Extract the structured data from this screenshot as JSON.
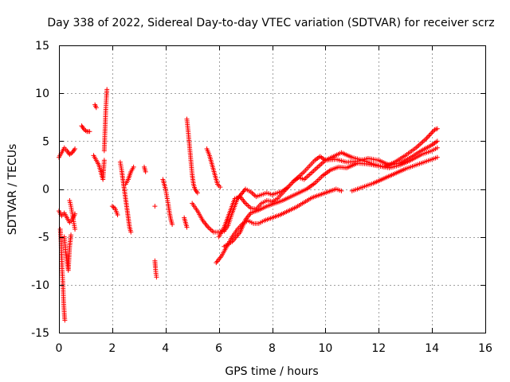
{
  "chart_data": {
    "type": "scatter",
    "title": "Day 338 of 2022, Sidereal Day-to-day VTEC variation (SDTVAR) for receiver scrz",
    "xlabel": "GPS time / hours",
    "ylabel": "SDTVAR / TECUs",
    "xlim": [
      0,
      16
    ],
    "ylim": [
      -15,
      15
    ],
    "xticks": [
      0,
      2,
      4,
      6,
      8,
      10,
      12,
      14,
      16
    ],
    "yticks": [
      -15,
      -10,
      -5,
      0,
      5,
      10,
      15
    ],
    "xtick_labels": [
      "0",
      "2",
      "4",
      "6",
      "8",
      "10",
      "12",
      "14",
      "16"
    ],
    "ytick_labels": [
      "-15",
      "-10",
      "-5",
      "0",
      "5",
      "10",
      "15"
    ],
    "grid": true,
    "marker": "+",
    "color": "#ff0000",
    "tracks": [
      {
        "name": "track-1",
        "points": [
          [
            0.0,
            3.3
          ],
          [
            0.1,
            3.8
          ],
          [
            0.2,
            4.3
          ],
          [
            0.3,
            4.0
          ],
          [
            0.4,
            3.6
          ],
          [
            0.5,
            3.8
          ],
          [
            0.6,
            4.2
          ]
        ]
      },
      {
        "name": "track-2",
        "points": [
          [
            0.0,
            -2.3
          ],
          [
            0.1,
            -2.8
          ],
          [
            0.2,
            -2.5
          ],
          [
            0.3,
            -3.0
          ],
          [
            0.4,
            -3.5
          ],
          [
            0.5,
            -3.2
          ],
          [
            0.6,
            -2.6
          ]
        ]
      },
      {
        "name": "track-3",
        "points": [
          [
            0.05,
            -4.2
          ],
          [
            0.08,
            -5.5
          ],
          [
            0.1,
            -7.0
          ],
          [
            0.12,
            -8.5
          ],
          [
            0.15,
            -10.0
          ],
          [
            0.17,
            -11.5
          ],
          [
            0.2,
            -13.0
          ],
          [
            0.22,
            -13.7
          ]
        ]
      },
      {
        "name": "track-4",
        "points": [
          [
            0.2,
            -5.0
          ],
          [
            0.25,
            -6.5
          ],
          [
            0.3,
            -7.5
          ],
          [
            0.35,
            -8.5
          ],
          [
            0.4,
            -6.0
          ],
          [
            0.45,
            -4.8
          ]
        ]
      },
      {
        "name": "track-5",
        "points": [
          [
            0.4,
            -1.2
          ],
          [
            0.45,
            -1.8
          ],
          [
            0.5,
            -2.6
          ],
          [
            0.55,
            -3.4
          ],
          [
            0.6,
            -4.2
          ]
        ]
      },
      {
        "name": "track-6",
        "points": [
          [
            0.85,
            6.6
          ],
          [
            0.95,
            6.2
          ],
          [
            1.05,
            6.0
          ],
          [
            1.15,
            6.0
          ]
        ]
      },
      {
        "name": "track-7",
        "points": [
          [
            1.35,
            8.8
          ],
          [
            1.4,
            8.5
          ]
        ]
      },
      {
        "name": "track-8",
        "points": [
          [
            1.3,
            3.5
          ],
          [
            1.4,
            3.0
          ],
          [
            1.5,
            2.5
          ],
          [
            1.6,
            1.5
          ],
          [
            1.65,
            1.0
          ],
          [
            1.7,
            3.0
          ]
        ]
      },
      {
        "name": "track-9",
        "points": [
          [
            1.7,
            4.0
          ],
          [
            1.72,
            5.5
          ],
          [
            1.74,
            7.0
          ],
          [
            1.76,
            8.5
          ],
          [
            1.78,
            9.5
          ],
          [
            1.8,
            10.4
          ]
        ]
      },
      {
        "name": "track-10",
        "points": [
          [
            2.0,
            -1.8
          ],
          [
            2.1,
            -2.0
          ],
          [
            2.2,
            -2.7
          ]
        ]
      },
      {
        "name": "track-11",
        "points": [
          [
            2.3,
            2.8
          ],
          [
            2.35,
            2.0
          ],
          [
            2.4,
            1.0
          ],
          [
            2.45,
            0.0
          ],
          [
            2.5,
            -1.0
          ],
          [
            2.55,
            -2.0
          ],
          [
            2.6,
            -3.0
          ],
          [
            2.65,
            -4.0
          ],
          [
            2.7,
            -4.5
          ]
        ]
      },
      {
        "name": "track-12",
        "points": [
          [
            2.5,
            0.5
          ],
          [
            2.6,
            1.0
          ],
          [
            2.7,
            1.8
          ],
          [
            2.8,
            2.3
          ]
        ]
      },
      {
        "name": "track-13",
        "points": [
          [
            3.2,
            2.3
          ],
          [
            3.25,
            1.8
          ]
        ]
      },
      {
        "name": "track-14",
        "points": [
          [
            3.6,
            -7.5
          ],
          [
            3.62,
            -8.2
          ],
          [
            3.64,
            -8.8
          ],
          [
            3.66,
            -9.2
          ]
        ]
      },
      {
        "name": "track-15",
        "points": [
          [
            3.6,
            -1.8
          ]
        ]
      },
      {
        "name": "track-16",
        "points": [
          [
            3.9,
            1.0
          ],
          [
            3.95,
            0.5
          ],
          [
            4.0,
            0.0
          ],
          [
            4.05,
            -0.8
          ],
          [
            4.1,
            -1.6
          ],
          [
            4.15,
            -2.5
          ],
          [
            4.2,
            -3.2
          ],
          [
            4.25,
            -3.7
          ]
        ]
      },
      {
        "name": "track-17",
        "points": [
          [
            4.7,
            -3.0
          ],
          [
            4.75,
            -3.5
          ],
          [
            4.8,
            -4.0
          ]
        ]
      },
      {
        "name": "track-18",
        "points": [
          [
            4.8,
            7.3
          ],
          [
            4.85,
            6.0
          ],
          [
            4.9,
            4.5
          ],
          [
            4.95,
            3.0
          ],
          [
            5.0,
            1.5
          ],
          [
            5.05,
            0.5
          ],
          [
            5.1,
            0.0
          ],
          [
            5.2,
            -0.4
          ]
        ]
      },
      {
        "name": "track-19",
        "points": [
          [
            5.55,
            4.2
          ],
          [
            5.65,
            3.5
          ],
          [
            5.75,
            2.5
          ],
          [
            5.85,
            1.5
          ],
          [
            5.95,
            0.5
          ],
          [
            6.05,
            0.2
          ]
        ]
      },
      {
        "name": "track-20",
        "points": [
          [
            5.0,
            -1.5
          ],
          [
            5.2,
            -2.3
          ],
          [
            5.4,
            -3.3
          ],
          [
            5.6,
            -4.0
          ],
          [
            5.8,
            -4.5
          ],
          [
            6.0,
            -4.5
          ],
          [
            6.2,
            -4.4
          ],
          [
            6.35,
            -3.8
          ],
          [
            6.5,
            -2.5
          ],
          [
            6.7,
            -1.0
          ],
          [
            6.85,
            -0.5
          ],
          [
            7.0,
            0.0
          ],
          [
            7.2,
            -0.3
          ],
          [
            7.4,
            -0.8
          ],
          [
            7.6,
            -0.6
          ],
          [
            7.8,
            -0.4
          ],
          [
            8.0,
            -0.6
          ],
          [
            8.2,
            -0.4
          ],
          [
            8.4,
            -0.2
          ],
          [
            8.6,
            0.2
          ],
          [
            8.8,
            0.8
          ],
          [
            9.0,
            1.3
          ],
          [
            9.2,
            1.8
          ],
          [
            9.4,
            2.4
          ],
          [
            9.6,
            3.0
          ],
          [
            9.8,
            3.4
          ],
          [
            10.0,
            3.0
          ],
          [
            10.3,
            3.4
          ],
          [
            10.6,
            3.8
          ],
          [
            11.0,
            3.3
          ],
          [
            11.4,
            3.0
          ],
          [
            11.8,
            2.6
          ],
          [
            12.2,
            2.3
          ],
          [
            12.6,
            2.8
          ],
          [
            13.0,
            3.5
          ],
          [
            13.4,
            4.3
          ],
          [
            13.8,
            5.3
          ],
          [
            14.1,
            6.2
          ],
          [
            14.2,
            6.3
          ]
        ]
      },
      {
        "name": "track-21",
        "points": [
          [
            6.0,
            -5.0
          ],
          [
            6.2,
            -4.0
          ],
          [
            6.4,
            -2.5
          ],
          [
            6.6,
            -1.0
          ],
          [
            6.8,
            -0.8
          ],
          [
            7.0,
            -1.5
          ],
          [
            7.2,
            -2.0
          ],
          [
            7.4,
            -2.1
          ],
          [
            7.6,
            -1.5
          ],
          [
            7.8,
            -1.2
          ],
          [
            8.0,
            -1.3
          ],
          [
            8.2,
            -1.0
          ],
          [
            8.4,
            -0.4
          ],
          [
            8.6,
            0.2
          ],
          [
            8.8,
            0.8
          ],
          [
            9.0,
            1.2
          ],
          [
            9.2,
            1.0
          ],
          [
            9.4,
            1.5
          ],
          [
            9.6,
            2.0
          ],
          [
            9.8,
            2.5
          ],
          [
            10.0,
            3.0
          ],
          [
            10.4,
            3.1
          ],
          [
            10.8,
            2.8
          ],
          [
            11.2,
            2.9
          ],
          [
            11.6,
            3.2
          ],
          [
            12.0,
            3.0
          ],
          [
            12.4,
            2.5
          ],
          [
            12.8,
            2.7
          ],
          [
            13.2,
            3.3
          ],
          [
            13.6,
            4.0
          ],
          [
            14.0,
            4.6
          ],
          [
            14.2,
            5.0
          ]
        ]
      },
      {
        "name": "track-22",
        "points": [
          [
            5.9,
            -7.7
          ],
          [
            6.1,
            -7.0
          ],
          [
            6.3,
            -6.0
          ],
          [
            6.5,
            -5.0
          ],
          [
            6.7,
            -4.2
          ],
          [
            6.9,
            -3.6
          ],
          [
            7.1,
            -3.3
          ],
          [
            7.3,
            -3.6
          ],
          [
            7.5,
            -3.6
          ],
          [
            7.7,
            -3.3
          ],
          [
            8.0,
            -3.0
          ],
          [
            8.3,
            -2.7
          ],
          [
            8.6,
            -2.3
          ],
          [
            8.9,
            -1.9
          ],
          [
            9.2,
            -1.4
          ],
          [
            9.5,
            -0.9
          ],
          [
            9.8,
            -0.6
          ],
          [
            10.1,
            -0.3
          ],
          [
            10.4,
            0.0
          ],
          [
            10.6,
            -0.2
          ]
        ]
      },
      {
        "name": "track-23",
        "points": [
          [
            6.2,
            -6.0
          ],
          [
            6.5,
            -5.5
          ],
          [
            6.8,
            -4.5
          ],
          [
            7.0,
            -3.2
          ],
          [
            7.2,
            -2.5
          ],
          [
            7.5,
            -2.2
          ],
          [
            7.8,
            -1.8
          ],
          [
            8.1,
            -1.5
          ],
          [
            8.4,
            -1.2
          ],
          [
            8.7,
            -0.8
          ],
          [
            9.0,
            -0.4
          ],
          [
            9.3,
            0.0
          ],
          [
            9.6,
            0.6
          ],
          [
            9.9,
            1.4
          ],
          [
            10.2,
            2.0
          ],
          [
            10.5,
            2.3
          ],
          [
            10.8,
            2.2
          ],
          [
            11.2,
            2.7
          ],
          [
            11.6,
            2.6
          ],
          [
            12.0,
            2.4
          ],
          [
            12.4,
            2.2
          ],
          [
            12.8,
            2.5
          ],
          [
            13.2,
            3.0
          ],
          [
            13.6,
            3.6
          ],
          [
            14.0,
            4.0
          ],
          [
            14.2,
            4.3
          ]
        ]
      },
      {
        "name": "track-24",
        "points": [
          [
            11.0,
            -0.2
          ],
          [
            11.4,
            0.2
          ],
          [
            11.8,
            0.6
          ],
          [
            12.2,
            1.1
          ],
          [
            12.6,
            1.6
          ],
          [
            13.0,
            2.1
          ],
          [
            13.4,
            2.5
          ],
          [
            13.8,
            2.9
          ],
          [
            14.2,
            3.3
          ]
        ]
      }
    ]
  }
}
